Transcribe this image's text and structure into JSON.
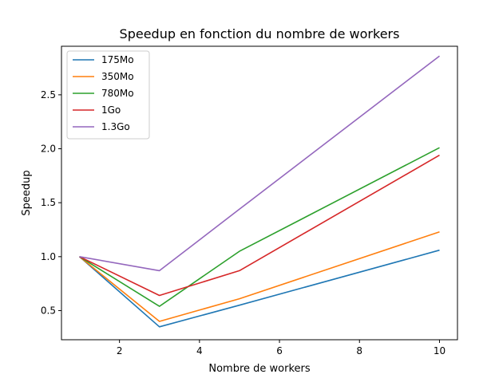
{
  "chart_data": {
    "type": "line",
    "title": "Speedup en fonction du nombre de workers",
    "xlabel": "Nombre de workers",
    "ylabel": "Speedup",
    "x": [
      1,
      3,
      5,
      10
    ],
    "xlim": [
      0.55,
      10.45
    ],
    "ylim": [
      0.23,
      2.95
    ],
    "xticks": [
      2,
      4,
      6,
      8,
      10
    ],
    "yticks": [
      0.5,
      1.0,
      1.5,
      2.0,
      2.5
    ],
    "ytick_labels": [
      "0.5",
      "1.0",
      "1.5",
      "2.0",
      "2.5"
    ],
    "grid": false,
    "legend": "top-left",
    "series": [
      {
        "name": "175Mo",
        "color": "#1f77b4",
        "values": [
          1.0,
          0.35,
          0.55,
          1.06
        ]
      },
      {
        "name": "350Mo",
        "color": "#ff7f0e",
        "values": [
          1.0,
          0.4,
          0.61,
          1.23
        ]
      },
      {
        "name": "780Mo",
        "color": "#2ca02c",
        "values": [
          1.0,
          0.54,
          1.05,
          2.01
        ]
      },
      {
        "name": "1Go",
        "color": "#d62728",
        "values": [
          1.0,
          0.64,
          0.87,
          1.94
        ]
      },
      {
        "name": "1.3Go",
        "color": "#9467bd",
        "values": [
          1.0,
          0.87,
          1.44,
          2.86
        ]
      }
    ]
  }
}
